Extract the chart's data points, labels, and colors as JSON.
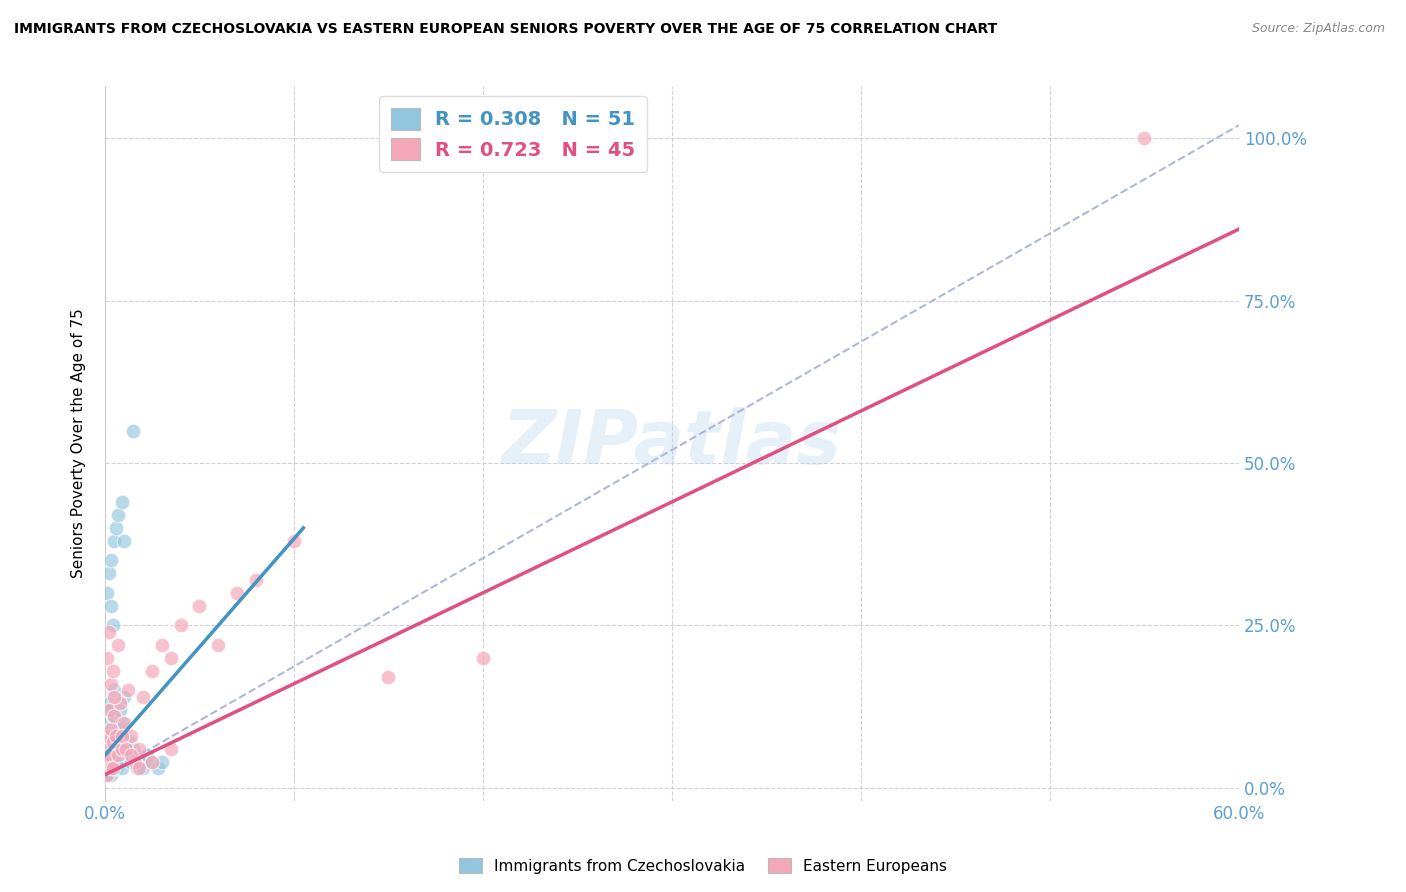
{
  "title": "IMMIGRANTS FROM CZECHOSLOVAKIA VS EASTERN EUROPEAN SENIORS POVERTY OVER THE AGE OF 75 CORRELATION CHART",
  "source": "Source: ZipAtlas.com",
  "ylabel": "Seniors Poverty Over the Age of 75",
  "watermark": "ZIPatlas",
  "blue_color": "#92c5de",
  "pink_color": "#f4a7b9",
  "blue_line_color": "#4393c3",
  "pink_line_color": "#e05080",
  "dashed_line_color": "#b0b8d8",
  "right_axis_color": "#6baed6",
  "legend_r1": "R = 0.308",
  "legend_n1": "N = 51",
  "legend_r2": "R = 0.723",
  "legend_n2": "N = 45",
  "legend_label1": "Immigrants from Czechoslovakia",
  "legend_label2": "Eastern Europeans",
  "xlim": [
    0.0,
    0.6
  ],
  "ylim": [
    -0.02,
    1.08
  ],
  "yticks": [
    0.0,
    0.25,
    0.5,
    0.75,
    1.0
  ],
  "ytick_labels": [
    "0.0%",
    "25.0%",
    "50.0%",
    "75.0%",
    "100.0%"
  ],
  "xticks": [
    0.0,
    0.1,
    0.2,
    0.3,
    0.4,
    0.5,
    0.6
  ],
  "xtick_labels": [
    "0.0%",
    "",
    "",
    "",
    "",
    "",
    "60.0%"
  ],
  "blue_scatter_x": [
    0.0005,
    0.001,
    0.001,
    0.001,
    0.0015,
    0.002,
    0.002,
    0.0025,
    0.003,
    0.003,
    0.003,
    0.004,
    0.004,
    0.004,
    0.005,
    0.005,
    0.005,
    0.006,
    0.006,
    0.007,
    0.007,
    0.008,
    0.008,
    0.009,
    0.009,
    0.01,
    0.01,
    0.011,
    0.012,
    0.013,
    0.014,
    0.015,
    0.016,
    0.017,
    0.018,
    0.02,
    0.022,
    0.025,
    0.028,
    0.03,
    0.001,
    0.002,
    0.003,
    0.003,
    0.004,
    0.005,
    0.006,
    0.007,
    0.009,
    0.01,
    0.015
  ],
  "blue_scatter_y": [
    0.05,
    0.07,
    0.1,
    0.02,
    0.06,
    0.08,
    0.13,
    0.04,
    0.06,
    0.12,
    0.02,
    0.07,
    0.11,
    0.03,
    0.08,
    0.05,
    0.15,
    0.07,
    0.03,
    0.09,
    0.04,
    0.12,
    0.06,
    0.1,
    0.03,
    0.08,
    0.14,
    0.06,
    0.05,
    0.07,
    0.04,
    0.06,
    0.05,
    0.03,
    0.04,
    0.03,
    0.05,
    0.04,
    0.03,
    0.04,
    0.3,
    0.33,
    0.28,
    0.35,
    0.25,
    0.38,
    0.4,
    0.42,
    0.44,
    0.38,
    0.55
  ],
  "pink_scatter_x": [
    0.0005,
    0.001,
    0.001,
    0.0015,
    0.002,
    0.002,
    0.003,
    0.003,
    0.004,
    0.004,
    0.005,
    0.006,
    0.007,
    0.008,
    0.009,
    0.01,
    0.012,
    0.014,
    0.016,
    0.018,
    0.02,
    0.025,
    0.03,
    0.035,
    0.04,
    0.05,
    0.06,
    0.07,
    0.08,
    0.1,
    0.001,
    0.002,
    0.003,
    0.004,
    0.005,
    0.007,
    0.009,
    0.011,
    0.014,
    0.018,
    0.025,
    0.035,
    0.2,
    0.55,
    0.15
  ],
  "pink_scatter_y": [
    0.04,
    0.06,
    0.02,
    0.08,
    0.05,
    0.12,
    0.03,
    0.09,
    0.07,
    0.03,
    0.11,
    0.08,
    0.05,
    0.13,
    0.06,
    0.1,
    0.15,
    0.08,
    0.04,
    0.06,
    0.14,
    0.18,
    0.22,
    0.2,
    0.25,
    0.28,
    0.22,
    0.3,
    0.32,
    0.38,
    0.2,
    0.24,
    0.16,
    0.18,
    0.14,
    0.22,
    0.08,
    0.06,
    0.05,
    0.03,
    0.04,
    0.06,
    0.2,
    1.0,
    0.17
  ],
  "blue_line_x": [
    0.0,
    0.105
  ],
  "blue_line_y": [
    0.05,
    0.4
  ],
  "pink_line_x": [
    0.0,
    0.6
  ],
  "pink_line_y": [
    0.02,
    0.86
  ],
  "dashed_line_x": [
    0.0,
    0.6
  ],
  "dashed_line_y": [
    0.02,
    1.02
  ]
}
